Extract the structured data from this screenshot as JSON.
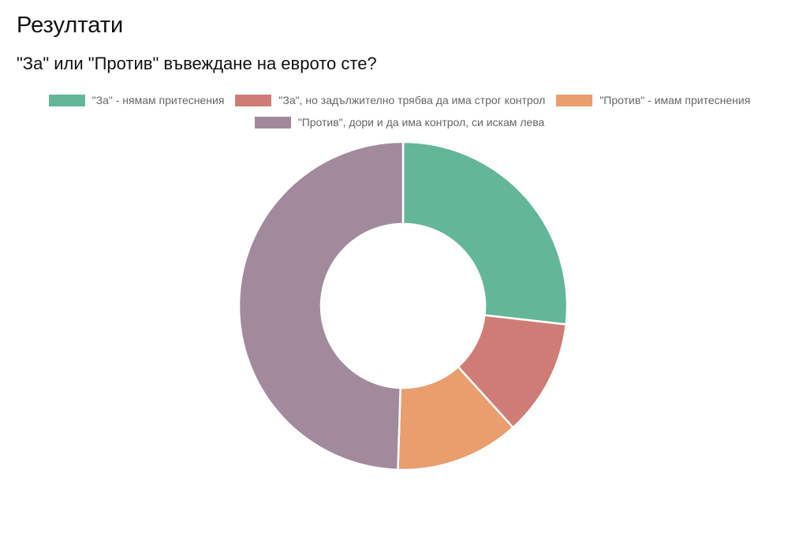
{
  "page": {
    "heading": "Резултати",
    "question": "\"За\" или \"Против\" въвеждане на еврото сте?"
  },
  "chart_data": {
    "type": "pie",
    "style": "doughnut",
    "legend_position": "top",
    "categories": [
      "\"За\" - нямам притеснения",
      "\"За\", но задължително трябва да има строг контрол",
      "\"Против\" - имам притеснения",
      "\"Против\", дори и да има контрол, си искам лева"
    ],
    "values": [
      26.8,
      11.5,
      12.2,
      49.5
    ],
    "colors": [
      "#64b699",
      "#cf7c76",
      "#ea9e6e",
      "#a28a9d"
    ]
  }
}
